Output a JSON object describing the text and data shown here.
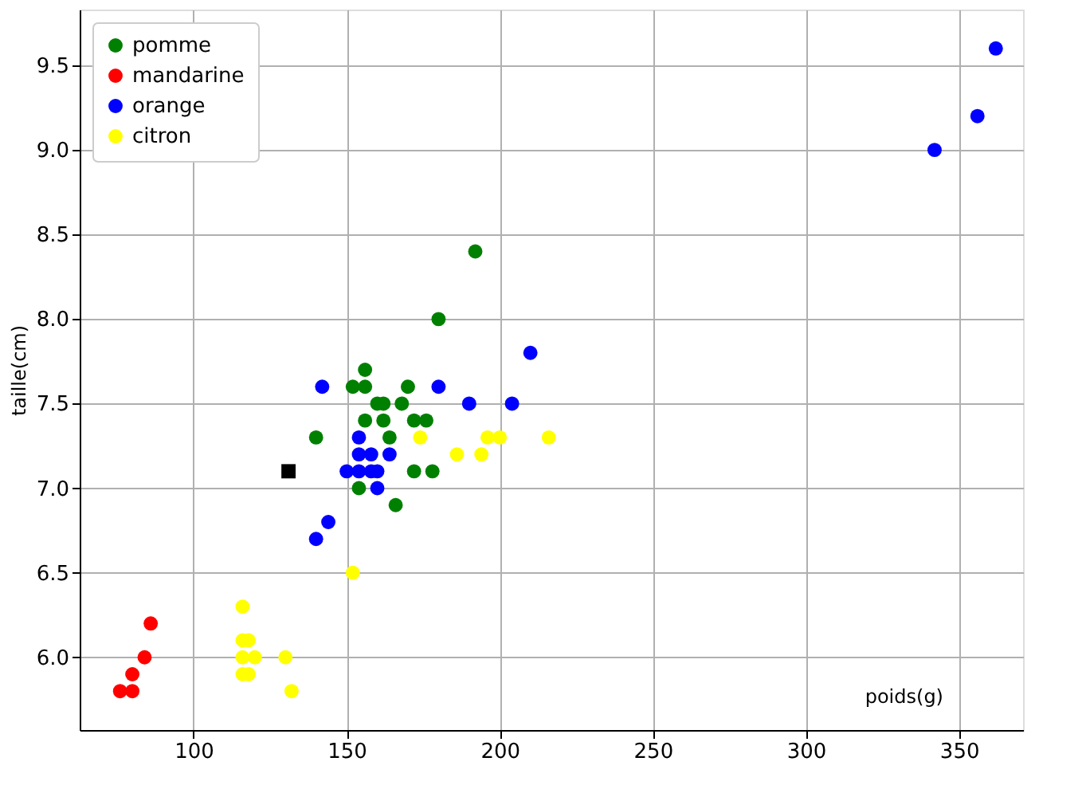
{
  "chart_data": {
    "type": "scatter",
    "xlabel": "poids(g)",
    "ylabel": "taille(cm)",
    "series": [
      {
        "name": "pomme",
        "color": "#008000",
        "marker": "circle",
        "x": [
          192,
          180,
          176,
          178,
          172,
          166,
          172,
          154,
          164,
          152,
          156,
          156,
          168,
          162,
          162,
          160,
          156,
          140,
          170
        ],
        "values": [
          8.4,
          8.0,
          7.4,
          7.1,
          7.4,
          6.9,
          7.1,
          7.0,
          7.3,
          7.6,
          7.7,
          7.6,
          7.5,
          7.5,
          7.4,
          7.5,
          7.4,
          7.3,
          7.6
        ]
      },
      {
        "name": "mandarine",
        "color": "#ff0000",
        "marker": "circle",
        "x": [
          86,
          84,
          80,
          80,
          76
        ],
        "values": [
          6.2,
          6.0,
          5.8,
          5.9,
          5.8
        ]
      },
      {
        "name": "orange",
        "color": "#0000ff",
        "marker": "circle",
        "x": [
          342,
          356,
          362,
          204,
          140,
          160,
          158,
          210,
          164,
          190,
          142,
          150,
          160,
          154,
          158,
          144,
          154,
          180,
          154
        ],
        "values": [
          9.0,
          9.2,
          9.6,
          7.5,
          6.7,
          7.0,
          7.1,
          7.8,
          7.2,
          7.5,
          7.6,
          7.1,
          7.1,
          7.3,
          7.2,
          6.8,
          7.1,
          7.6,
          7.2
        ]
      },
      {
        "name": "citron",
        "color": "#ffff00",
        "marker": "circle",
        "x": [
          194,
          200,
          186,
          216,
          196,
          174,
          132,
          130,
          116,
          118,
          120,
          116,
          116,
          116,
          152,
          118
        ],
        "values": [
          7.2,
          7.3,
          7.2,
          7.3,
          7.3,
          7.3,
          5.8,
          6.0,
          6.0,
          5.9,
          6.0,
          6.1,
          6.3,
          5.9,
          6.5,
          6.1
        ]
      },
      {
        "color": "#000000",
        "marker": "square",
        "x": [
          131
        ],
        "values": [
          7.1
        ]
      }
    ],
    "xlim": [
      62.8,
      370.9
    ],
    "ylim": [
      5.57,
      9.83
    ],
    "xticks": [
      100,
      150,
      200,
      250,
      300,
      350
    ],
    "yticks": [
      {
        "value": 6,
        "label": "6.0"
      },
      {
        "value": 6.5,
        "label": "6.5"
      },
      {
        "value": 7,
        "label": "7.0"
      },
      {
        "value": 7.5,
        "label": "7.5"
      },
      {
        "value": 8,
        "label": "8.0"
      },
      {
        "value": 8.5,
        "label": "8.5"
      },
      {
        "value": 9,
        "label": "9.0"
      },
      {
        "value": 9.5,
        "label": "9.5"
      }
    ],
    "grid": true,
    "legend": "top left"
  }
}
